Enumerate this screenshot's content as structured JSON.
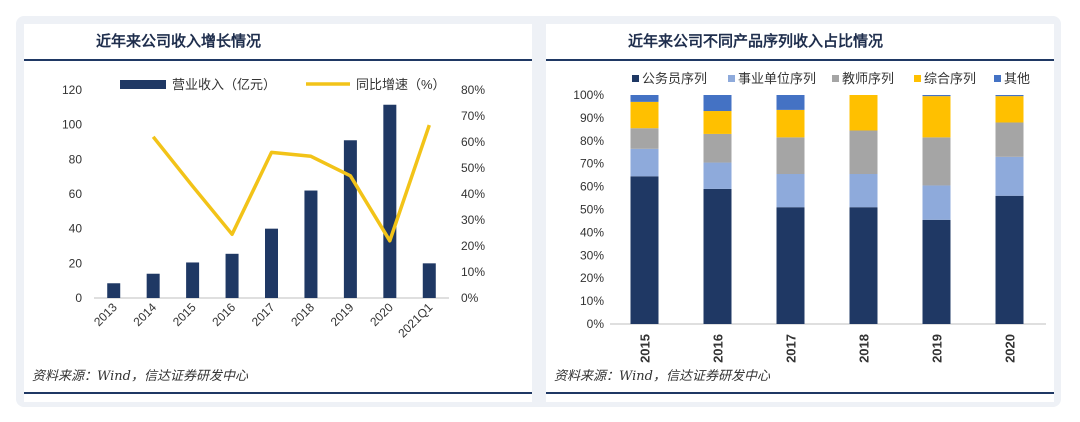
{
  "colors": {
    "bar": "#1f3864",
    "line": "#f2c318",
    "frame": "#eef1f6"
  },
  "left": {
    "title": "近年来公司收入增长情况",
    "source": "资料来源：Wind，信达证券研发中心"
  },
  "right": {
    "title": "近年来公司不同产品序列收入占比情况",
    "source": "资料来源：Wind，信达证券研发中心"
  },
  "chart_data": [
    {
      "type": "bar",
      "title": "近年来公司收入增长情况",
      "categories": [
        "2013",
        "2014",
        "2015",
        "2016",
        "2017",
        "2018",
        "2019",
        "2020",
        "2021Q1"
      ],
      "series": [
        {
          "name": "营业收入（亿元）",
          "type": "bar",
          "axis": "left",
          "color": "#1f3864",
          "values": [
            8.5,
            14,
            20.5,
            25.5,
            40,
            62,
            91,
            111.5,
            20
          ]
        },
        {
          "name": "同比增速（%）",
          "type": "line",
          "axis": "right",
          "color": "#f2c318",
          "values": [
            null,
            62,
            43,
            24.5,
            56,
            54.5,
            47,
            22,
            66.5
          ]
        }
      ],
      "y_left": {
        "lim": [
          0,
          120
        ],
        "ticks": [
          "0",
          "20",
          "40",
          "60",
          "80",
          "100",
          "120"
        ]
      },
      "y_right": {
        "lim": [
          0,
          80
        ],
        "ticks": [
          "0%",
          "10%",
          "20%",
          "30%",
          "40%",
          "50%",
          "60%",
          "70%",
          "80%"
        ]
      },
      "legend": "top",
      "grid": false
    },
    {
      "type": "bar",
      "stacked": true,
      "title": "近年来公司不同产品序列收入占比情况",
      "categories": [
        "2015",
        "2016",
        "2017",
        "2018",
        "2019",
        "2020"
      ],
      "series": [
        {
          "name": "公务员序列",
          "color": "#1f3864",
          "values": [
            64.5,
            59,
            51,
            51,
            45.5,
            56
          ]
        },
        {
          "name": "事业单位序列",
          "color": "#8eaadb",
          "values": [
            12,
            11.5,
            14.5,
            14.5,
            15,
            17
          ]
        },
        {
          "name": "教师序列",
          "color": "#a5a5a5",
          "values": [
            9,
            12.5,
            16,
            19,
            21,
            15
          ]
        },
        {
          "name": "综合序列",
          "color": "#ffc000",
          "values": [
            11.5,
            10,
            12,
            15.5,
            18,
            11.5
          ]
        },
        {
          "name": "其他",
          "color": "#4472c4",
          "values": [
            3,
            7,
            6.5,
            0,
            0.5,
            0.5
          ]
        }
      ],
      "y": {
        "lim": [
          0,
          100
        ],
        "ticks": [
          "0%",
          "10%",
          "20%",
          "30%",
          "40%",
          "50%",
          "60%",
          "70%",
          "80%",
          "90%",
          "100%"
        ]
      },
      "legend": "top",
      "grid": false
    }
  ]
}
